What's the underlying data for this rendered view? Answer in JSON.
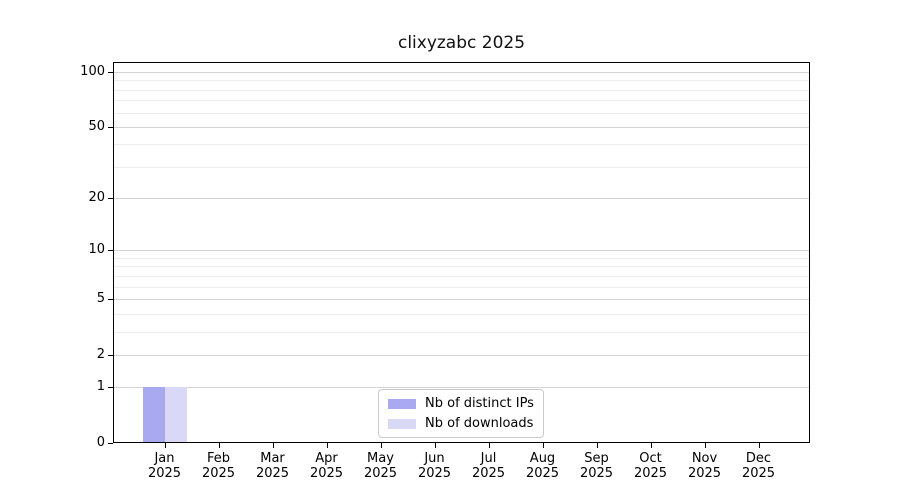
{
  "chart_data": {
    "type": "bar",
    "title": "clixyzabc 2025",
    "categories": [
      "Jan 2025",
      "Feb 2025",
      "Mar 2025",
      "Apr 2025",
      "May 2025",
      "Jun 2025",
      "Jul 2025",
      "Aug 2025",
      "Sep 2025",
      "Oct 2025",
      "Nov 2025",
      "Dec 2025"
    ],
    "series": [
      {
        "name": "Nb of distinct IPs",
        "color": "#a9a9f2",
        "values": [
          1,
          0,
          0,
          0,
          0,
          0,
          0,
          0,
          0,
          0,
          0,
          0
        ]
      },
      {
        "name": "Nb of downloads",
        "color": "#d9d9f7",
        "values": [
          1,
          0,
          0,
          0,
          0,
          0,
          0,
          0,
          0,
          0,
          0,
          0
        ]
      }
    ],
    "xlabel": "",
    "ylabel": "",
    "y_axis": {
      "scale": "log1p",
      "ticks": [
        0,
        1,
        2,
        5,
        10,
        20,
        50,
        100
      ],
      "minor_ticks": [
        3,
        4,
        6,
        7,
        8,
        9,
        30,
        40,
        60,
        70,
        80,
        90
      ],
      "ylim": [
        0,
        113
      ]
    },
    "grid": "horizontal",
    "legend": {
      "position": "inside-bottom-center"
    }
  },
  "colors": {
    "grid_major": "#d4d4d4",
    "grid_minor": "#ededed",
    "axis": "#000000",
    "legend_border": "#cbcbcb"
  }
}
